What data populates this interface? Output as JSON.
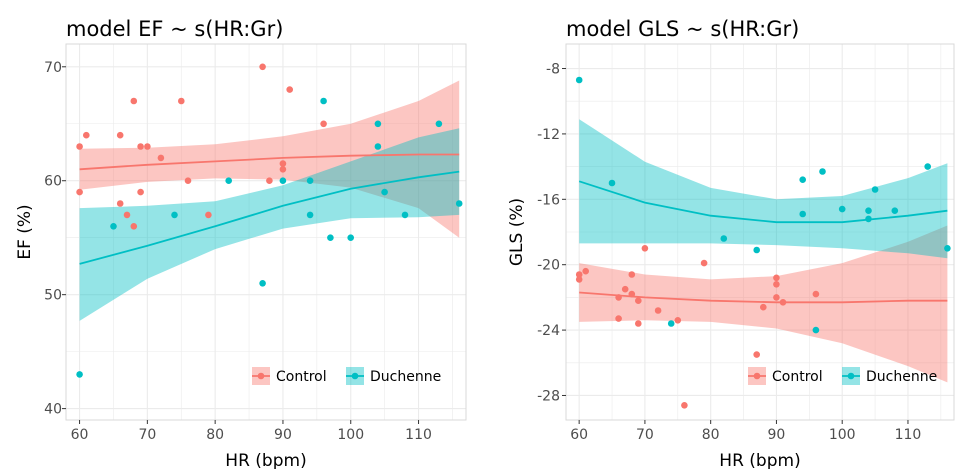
{
  "colors": {
    "control": "#F8766D",
    "duchenne": "#00BFC4",
    "panel_bg": "#FFFFFF",
    "grid": "#EBEBEB",
    "border": "#D9D9D9",
    "text": "#000000",
    "tick": "#4D4D4D"
  },
  "chart_data": [
    {
      "type": "scatter",
      "title": "model EF ~ s(HR:Gr)",
      "xlabel": "HR (bpm)",
      "ylabel": "EF (%)",
      "xlim": [
        58,
        117
      ],
      "ylim": [
        39,
        72
      ],
      "xticks": [
        60,
        70,
        80,
        90,
        100,
        110
      ],
      "yticks": [
        40,
        50,
        60,
        70
      ],
      "xtick_labels": [
        "60",
        "70",
        "80",
        "90",
        "100",
        "110"
      ],
      "ytick_labels": [
        "40",
        "50",
        "60",
        "70"
      ],
      "legend": {
        "position": "bottom-right",
        "entries": [
          "Control",
          "Duchenne"
        ]
      },
      "grid": true,
      "series": [
        {
          "name": "Control",
          "color": "#F8766D",
          "points": [
            [
              60,
              63
            ],
            [
              60,
              59
            ],
            [
              61,
              64
            ],
            [
              66,
              64
            ],
            [
              66,
              58
            ],
            [
              67,
              57
            ],
            [
              68,
              67
            ],
            [
              68,
              56
            ],
            [
              69,
              59
            ],
            [
              69,
              63
            ],
            [
              70,
              63
            ],
            [
              72,
              62
            ],
            [
              75,
              67
            ],
            [
              76,
              60
            ],
            [
              79,
              57
            ],
            [
              87,
              70
            ],
            [
              88,
              60
            ],
            [
              90,
              61
            ],
            [
              90,
              61.5
            ],
            [
              91,
              68
            ],
            [
              96,
              65
            ]
          ],
          "fit": {
            "x": [
              60,
              70,
              80,
              90,
              100,
              110,
              116
            ],
            "y": [
              61.0,
              61.4,
              61.7,
              62.0,
              62.2,
              62.3,
              62.3
            ],
            "lower": [
              59.2,
              59.9,
              60.2,
              60.1,
              59.4,
              57.6,
              55.0
            ],
            "upper": [
              62.8,
              62.9,
              63.2,
              63.9,
              65.0,
              67.0,
              68.8
            ]
          }
        },
        {
          "name": "Duchenne",
          "color": "#00BFC4",
          "points": [
            [
              60,
              43
            ],
            [
              65,
              56
            ],
            [
              74,
              57
            ],
            [
              82,
              60
            ],
            [
              87,
              51
            ],
            [
              90,
              60
            ],
            [
              94,
              60
            ],
            [
              94,
              57
            ],
            [
              96,
              67
            ],
            [
              97,
              55
            ],
            [
              100,
              55
            ],
            [
              104,
              63
            ],
            [
              104,
              65
            ],
            [
              105,
              59
            ],
            [
              108,
              57
            ],
            [
              113,
              65
            ],
            [
              116,
              58
            ]
          ],
          "fit": {
            "x": [
              60,
              70,
              80,
              90,
              100,
              110,
              116
            ],
            "y": [
              52.7,
              54.3,
              56.0,
              57.8,
              59.3,
              60.3,
              60.8
            ],
            "lower": [
              47.7,
              51.4,
              54.0,
              55.8,
              56.7,
              56.8,
              57.0
            ],
            "upper": [
              57.6,
              57.8,
              58.2,
              59.6,
              61.7,
              63.8,
              64.6
            ]
          }
        }
      ]
    },
    {
      "type": "scatter",
      "title": "model GLS ~ s(HR:Gr)",
      "xlabel": "HR (bpm)",
      "ylabel": "GLS (%)",
      "xlim": [
        58,
        117
      ],
      "ylim": [
        -29.5,
        -6.5
      ],
      "xticks": [
        60,
        70,
        80,
        90,
        100,
        110
      ],
      "yticks": [
        -28,
        -24,
        -20,
        -16,
        -12,
        -8
      ],
      "xtick_labels": [
        "60",
        "70",
        "80",
        "90",
        "100",
        "110"
      ],
      "ytick_labels": [
        "-28",
        "-24",
        "-20",
        "-16",
        "-12",
        "-8"
      ],
      "legend": {
        "position": "bottom-right",
        "entries": [
          "Control",
          "Duchenne"
        ]
      },
      "grid": true,
      "series": [
        {
          "name": "Control",
          "color": "#F8766D",
          "points": [
            [
              60,
              -20.6
            ],
            [
              60,
              -20.9
            ],
            [
              61,
              -20.4
            ],
            [
              66,
              -22.0
            ],
            [
              66,
              -23.3
            ],
            [
              67,
              -21.5
            ],
            [
              68,
              -20.6
            ],
            [
              68,
              -21.8
            ],
            [
              69,
              -22.2
            ],
            [
              69,
              -23.6
            ],
            [
              70,
              -19.0
            ],
            [
              72,
              -22.8
            ],
            [
              75,
              -23.4
            ],
            [
              76,
              -28.6
            ],
            [
              79,
              -19.9
            ],
            [
              87,
              -25.5
            ],
            [
              88,
              -22.6
            ],
            [
              90,
              -20.8
            ],
            [
              90,
              -21.2
            ],
            [
              90,
              -22.0
            ],
            [
              91,
              -22.3
            ],
            [
              96,
              -21.8
            ]
          ],
          "fit": {
            "x": [
              60,
              70,
              80,
              90,
              100,
              110,
              116
            ],
            "y": [
              -21.7,
              -22.0,
              -22.2,
              -22.3,
              -22.3,
              -22.2,
              -22.2
            ],
            "lower": [
              -23.5,
              -23.4,
              -23.5,
              -23.9,
              -24.8,
              -26.2,
              -27.2
            ],
            "upper": [
              -19.9,
              -20.6,
              -20.9,
              -20.7,
              -19.9,
              -18.6,
              -17.6
            ]
          }
        },
        {
          "name": "Duchenne",
          "color": "#00BFC4",
          "points": [
            [
              60,
              -8.7
            ],
            [
              65,
              -15.0
            ],
            [
              74,
              -23.6
            ],
            [
              82,
              -18.4
            ],
            [
              87,
              -19.1
            ],
            [
              94,
              -14.8
            ],
            [
              94,
              -16.9
            ],
            [
              96,
              -24.0
            ],
            [
              97,
              -14.3
            ],
            [
              100,
              -16.6
            ],
            [
              104,
              -16.7
            ],
            [
              104,
              -17.2
            ],
            [
              105,
              -15.4
            ],
            [
              108,
              -16.7
            ],
            [
              113,
              -14.0
            ],
            [
              116,
              -19.0
            ]
          ],
          "fit": {
            "x": [
              60,
              70,
              80,
              90,
              100,
              110,
              116
            ],
            "y": [
              -14.9,
              -16.2,
              -17.0,
              -17.4,
              -17.4,
              -17.0,
              -16.7
            ],
            "lower": [
              -18.7,
              -18.7,
              -18.7,
              -18.8,
              -19.0,
              -19.3,
              -19.6
            ],
            "upper": [
              -11.1,
              -13.7,
              -15.3,
              -16.0,
              -15.8,
              -14.7,
              -13.8
            ]
          }
        }
      ]
    }
  ]
}
